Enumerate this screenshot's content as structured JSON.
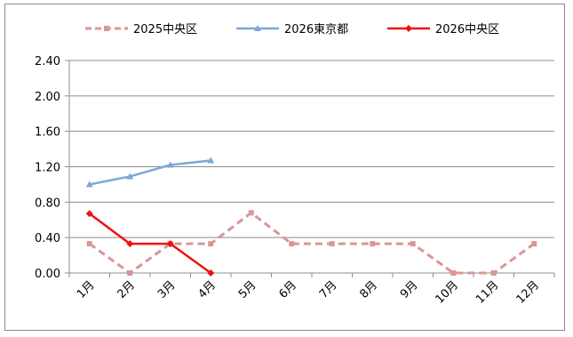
{
  "chart_data": {
    "type": "line",
    "title": "",
    "xlabel": "",
    "ylabel": "",
    "categories": [
      "1月",
      "2月",
      "3月",
      "4月",
      "5月",
      "6月",
      "7月",
      "8月",
      "9月",
      "10月",
      "11月",
      "12月"
    ],
    "ylim": [
      0,
      2.4
    ],
    "yticks": [
      "0.00",
      "0.40",
      "0.80",
      "1.20",
      "1.60",
      "2.00",
      "2.40"
    ],
    "grid": "horizontal",
    "legend_position": "top",
    "series": [
      {
        "name": "2025中央区",
        "color": "#d99694",
        "style": "dashed",
        "marker": "square",
        "values": [
          0.33,
          0.0,
          0.33,
          0.33,
          0.68,
          0.33,
          0.33,
          0.33,
          0.33,
          0.0,
          0.0,
          0.33
        ]
      },
      {
        "name": "2026東京都",
        "color": "#7ea6d9",
        "style": "solid",
        "marker": "triangle",
        "values": [
          1.0,
          1.09,
          1.22,
          1.27,
          null,
          null,
          null,
          null,
          null,
          null,
          null,
          null
        ]
      },
      {
        "name": "2026中央区",
        "color": "#ee1111",
        "style": "solid",
        "marker": "diamond",
        "values": [
          0.67,
          0.33,
          0.33,
          0.0,
          null,
          null,
          null,
          null,
          null,
          null,
          null,
          null
        ]
      }
    ]
  }
}
